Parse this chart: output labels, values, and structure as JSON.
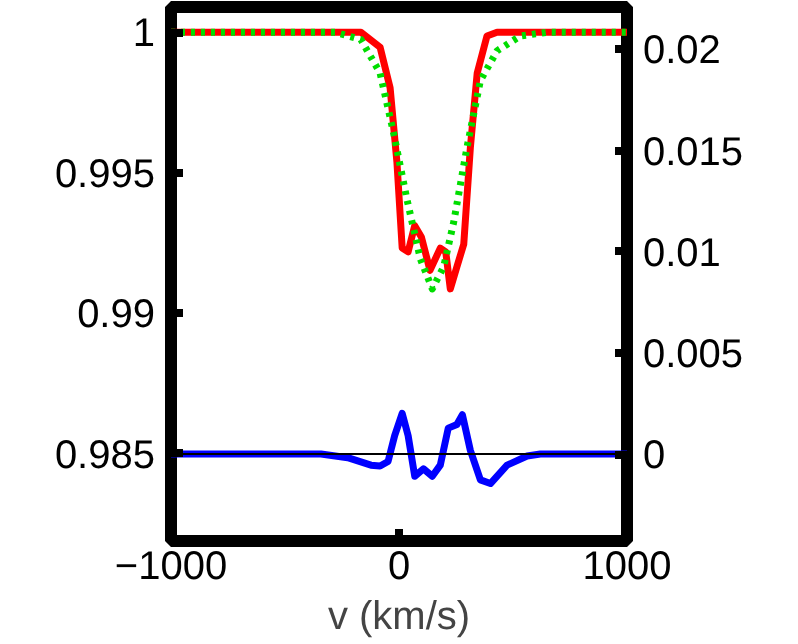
{
  "chart_data": {
    "type": "line",
    "xlabel": "v (km/s)",
    "xlim": [
      -1000,
      1000
    ],
    "xticks": [
      -1000,
      0,
      1000
    ],
    "ylim": [
      0.9819,
      1.0009
    ],
    "yticks": [
      0.985,
      0.99,
      0.995,
      1
    ],
    "y2lim": [
      -0.0043,
      0.0221
    ],
    "y2ticks": [
      0,
      0.005,
      0.01,
      0.015,
      0.02
    ],
    "ref_lines": [
      {
        "axis": "y2",
        "value": 0,
        "color": "#000000",
        "line_style": "solid"
      }
    ],
    "series": [
      {
        "color": "#ff0000",
        "line_style": "solid",
        "x": [
          -1000,
          -167,
          -83,
          -39,
          -9,
          14,
          40,
          69,
          98,
          136,
          181,
          205,
          225,
          254,
          284,
          313,
          343,
          386,
          430,
          1000
        ],
        "values": [
          1,
          1,
          0.99947,
          0.99802,
          0.99537,
          0.99232,
          0.99219,
          0.99312,
          0.99272,
          0.99153,
          0.99232,
          0.99219,
          0.99087,
          0.99166,
          0.99246,
          0.9959,
          0.99855,
          0.99987,
          1,
          1
        ]
      },
      {
        "color": "#00dd00",
        "line_style": "dotted",
        "x": [
          -1000,
          -280,
          -167,
          -83,
          -24,
          35,
          94,
          146,
          196,
          240,
          298,
          357,
          430,
          532,
          649,
          1000
        ],
        "values": [
          1,
          1,
          0.99974,
          0.99855,
          0.99643,
          0.99405,
          0.99193,
          0.99087,
          0.99166,
          0.99325,
          0.9959,
          0.99828,
          0.99934,
          0.99987,
          1,
          1
        ]
      },
      {
        "color": "#0000ff",
        "line_style": "solid",
        "axis": "y2",
        "x": [
          -1000,
          -342,
          -225,
          -123,
          -83,
          -48,
          -19,
          14,
          40,
          69,
          107,
          146,
          181,
          216,
          254,
          278,
          313,
          357,
          401,
          474,
          562,
          620,
          1000
        ],
        "values": [
          0,
          0,
          -0.00018,
          -0.00055,
          -0.00059,
          -0.00037,
          0.00091,
          0.00201,
          0.00091,
          -0.0011,
          -0.00073,
          -0.0011,
          -0.00055,
          0.00128,
          0.00146,
          0.00194,
          0.00018,
          -0.00128,
          -0.00146,
          -0.00055,
          -0.0001,
          0,
          0
        ]
      }
    ]
  }
}
